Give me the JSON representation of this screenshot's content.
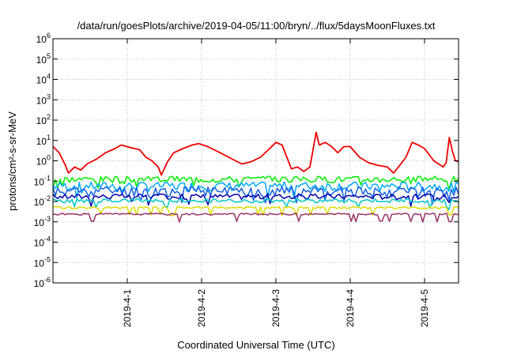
{
  "chart_data": {
    "type": "line",
    "title": "/data/run/goesPlots/archive/2019-04-05/11:00/bryn/../flux/5daysMoonFluxes.txt",
    "xlabel": "Coordinated Universal Time (UTC)",
    "ylabel": "protons/cm²-s-sr-MeV",
    "yscale": "log",
    "ylim": [
      "1e-6",
      "1e6"
    ],
    "xlim": [
      "2019-03-31 00:00",
      "2019-04-05 11:00"
    ],
    "x_ticks": [
      "2019-4-1",
      "2019-4-2",
      "2019-4-3",
      "2019-4-4",
      "2019-4-5"
    ],
    "y_ticks": [
      {
        "exp": -6,
        "label": "10",
        "sup": "-6"
      },
      {
        "exp": -5,
        "label": "10",
        "sup": "-5"
      },
      {
        "exp": -4,
        "label": "10",
        "sup": "-4"
      },
      {
        "exp": -3,
        "label": "10",
        "sup": "-3"
      },
      {
        "exp": -2,
        "label": "10",
        "sup": "-2"
      },
      {
        "exp": -1,
        "label": "10",
        "sup": "-1"
      },
      {
        "exp": 0,
        "label": "10",
        "sup": "0"
      },
      {
        "exp": 1,
        "label": "10",
        "sup": "1"
      },
      {
        "exp": 2,
        "label": "10",
        "sup": "2"
      },
      {
        "exp": 3,
        "label": "10",
        "sup": "3"
      },
      {
        "exp": 4,
        "label": "10",
        "sup": "4"
      },
      {
        "exp": 5,
        "label": "10",
        "sup": "5"
      },
      {
        "exp": 6,
        "label": "10",
        "sup": "6"
      }
    ],
    "grid": true,
    "series": [
      {
        "color": "#ee0000",
        "values": [
          [
            "2019-03-31 00:00",
            5
          ],
          [
            "2019-03-31 02:00",
            2.5
          ],
          [
            "2019-03-31 04:00",
            0.6
          ],
          [
            "2019-03-31 05:00",
            0.25
          ],
          [
            "2019-03-31 07:00",
            0.5
          ],
          [
            "2019-03-31 09:00",
            0.35
          ],
          [
            "2019-03-31 11:00",
            0.7
          ],
          [
            "2019-03-31 14:00",
            1.2
          ],
          [
            "2019-03-31 17:00",
            2.5
          ],
          [
            "2019-03-31 20:00",
            4
          ],
          [
            "2019-03-31 22:00",
            6
          ],
          [
            "2019-04-01 01:00",
            4.5
          ],
          [
            "2019-04-01 04:00",
            3.5
          ],
          [
            "2019-04-01 06:00",
            1.5
          ],
          [
            "2019-04-01 08:00",
            1.0
          ],
          [
            "2019-04-01 10:00",
            0.5
          ],
          [
            "2019-04-01 11:00",
            0.2
          ],
          [
            "2019-04-01 13:00",
            0.9
          ],
          [
            "2019-04-01 15:00",
            2.5
          ],
          [
            "2019-04-01 18:00",
            4
          ],
          [
            "2019-04-01 21:00",
            6
          ],
          [
            "2019-04-01 23:00",
            7
          ],
          [
            "2019-04-02 02:00",
            5
          ],
          [
            "2019-04-02 06:00",
            2.5
          ],
          [
            "2019-04-02 10:00",
            1.2
          ],
          [
            "2019-04-02 13:00",
            0.7
          ],
          [
            "2019-04-02 16:00",
            0.9
          ],
          [
            "2019-04-02 19:00",
            1.5
          ],
          [
            "2019-04-02 22:00",
            4
          ],
          [
            "2019-04-03 00:00",
            8
          ],
          [
            "2019-04-03 02:00",
            6
          ],
          [
            "2019-04-03 04:00",
            1.0
          ],
          [
            "2019-04-03 05:00",
            0.4
          ],
          [
            "2019-04-03 07:00",
            0.5
          ],
          [
            "2019-04-03 09:00",
            0.3
          ],
          [
            "2019-04-03 11:00",
            0.5
          ],
          [
            "2019-04-03 13:00",
            25
          ],
          [
            "2019-04-03 14:00",
            6
          ],
          [
            "2019-04-03 16:00",
            8
          ],
          [
            "2019-04-03 18:00",
            5
          ],
          [
            "2019-04-03 20:00",
            2.5
          ],
          [
            "2019-04-03 22:00",
            5
          ],
          [
            "2019-04-04 00:00",
            5
          ],
          [
            "2019-04-04 03:00",
            1.5
          ],
          [
            "2019-04-04 06:00",
            0.8
          ],
          [
            "2019-04-04 09:00",
            0.6
          ],
          [
            "2019-04-04 12:00",
            0.5
          ],
          [
            "2019-04-04 14:00",
            0.25
          ],
          [
            "2019-04-04 16:00",
            0.6
          ],
          [
            "2019-04-04 18:00",
            1.5
          ],
          [
            "2019-04-04 20:00",
            8
          ],
          [
            "2019-04-04 22:00",
            6
          ],
          [
            "2019-04-05 00:00",
            4
          ],
          [
            "2019-04-05 03:00",
            1.0
          ],
          [
            "2019-04-05 06:00",
            0.5
          ],
          [
            "2019-04-05 07:00",
            0.8
          ],
          [
            "2019-04-05 08:00",
            14
          ],
          [
            "2019-04-05 09:00",
            3
          ],
          [
            "2019-04-05 10:00",
            1.0
          ],
          [
            "2019-04-05 11:00",
            0.9
          ]
        ]
      },
      {
        "color": "#00ee00",
        "base": 0.13,
        "jitter": 0.35,
        "seed": 3
      },
      {
        "color": "#00aaff",
        "base": 0.06,
        "jitter": 0.5,
        "seed": 7
      },
      {
        "color": "#1560e0",
        "base": 0.035,
        "jitter": 0.55,
        "seed": 11
      },
      {
        "color": "#0000aa",
        "base": 0.018,
        "jitter": 0.3,
        "seed": 17
      },
      {
        "color": "#00c8c8",
        "base": 0.011,
        "jitter": 0.22,
        "seed": 23
      },
      {
        "color": "#dddd00",
        "base": 0.005,
        "jitter": 0.12,
        "seed": 29
      },
      {
        "color": "#993366",
        "base": 0.0024,
        "jitter": 0.1,
        "seed": 31
      }
    ]
  }
}
